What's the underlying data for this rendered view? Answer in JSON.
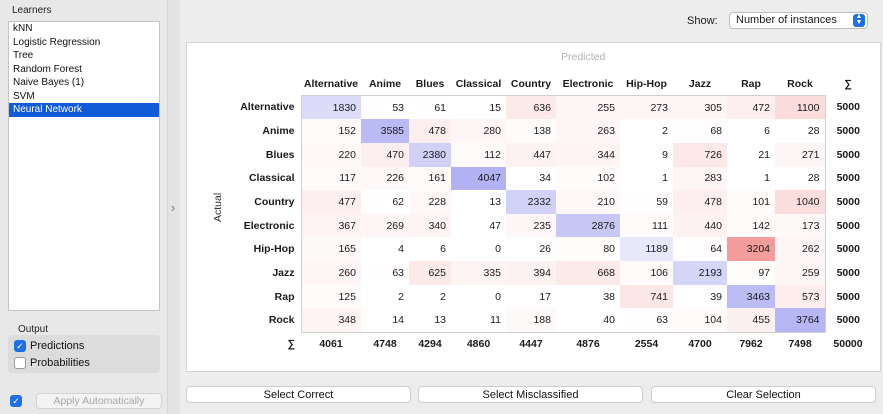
{
  "learners": {
    "label": "Learners",
    "items": [
      "kNN",
      "Logistic Regression",
      "Tree",
      "Random Forest",
      "Naive Bayes (1)",
      "SVM",
      "Neural Network"
    ],
    "selected_index": 6
  },
  "output": {
    "label": "Output",
    "predictions": {
      "label": "Predictions",
      "checked": true
    },
    "probabilities": {
      "label": "Probabilities",
      "checked": false
    }
  },
  "apply": {
    "label": "Apply Automatically",
    "checked": true
  },
  "show": {
    "label": "Show:",
    "value": "Number of instances"
  },
  "matrix": {
    "predicted_label": "Predicted",
    "actual_label": "Actual",
    "sum_symbol": "∑",
    "classes": [
      "Alternative",
      "Anime",
      "Blues",
      "Classical",
      "Country",
      "Electronic",
      "Hip-Hop",
      "Jazz",
      "Rap",
      "Rock"
    ],
    "rows": [
      [
        1830,
        53,
        61,
        15,
        636,
        255,
        273,
        305,
        472,
        1100
      ],
      [
        152,
        3585,
        478,
        280,
        138,
        263,
        2,
        68,
        6,
        28
      ],
      [
        220,
        470,
        2380,
        112,
        447,
        344,
        9,
        726,
        21,
        271
      ],
      [
        117,
        226,
        161,
        4047,
        34,
        102,
        1,
        283,
        1,
        28
      ],
      [
        477,
        62,
        228,
        13,
        2332,
        210,
        59,
        478,
        101,
        1040
      ],
      [
        367,
        269,
        340,
        47,
        235,
        2876,
        111,
        440,
        142,
        173
      ],
      [
        165,
        4,
        6,
        0,
        26,
        80,
        1189,
        64,
        3204,
        262
      ],
      [
        260,
        63,
        625,
        335,
        394,
        668,
        106,
        2193,
        97,
        259
      ],
      [
        125,
        2,
        2,
        0,
        17,
        38,
        741,
        39,
        3463,
        573
      ],
      [
        348,
        14,
        13,
        11,
        188,
        40,
        63,
        104,
        455,
        3764
      ]
    ],
    "row_sums": [
      "5000",
      "5000",
      "5000",
      "5000",
      "5000",
      "5000",
      "5000",
      "5000",
      "5000",
      "5000"
    ],
    "col_sums": [
      "4061",
      "4748",
      "4294",
      "4860",
      "4447",
      "4876",
      "2554",
      "4700",
      "7962",
      "7498"
    ],
    "total": "50000",
    "colors": {
      "correct": "#5e5ee6",
      "error": "#e84a4a"
    }
  },
  "buttons": {
    "select_correct": "Select Correct",
    "select_misclassified": "Select Misclassified",
    "clear_selection": "Clear Selection"
  }
}
